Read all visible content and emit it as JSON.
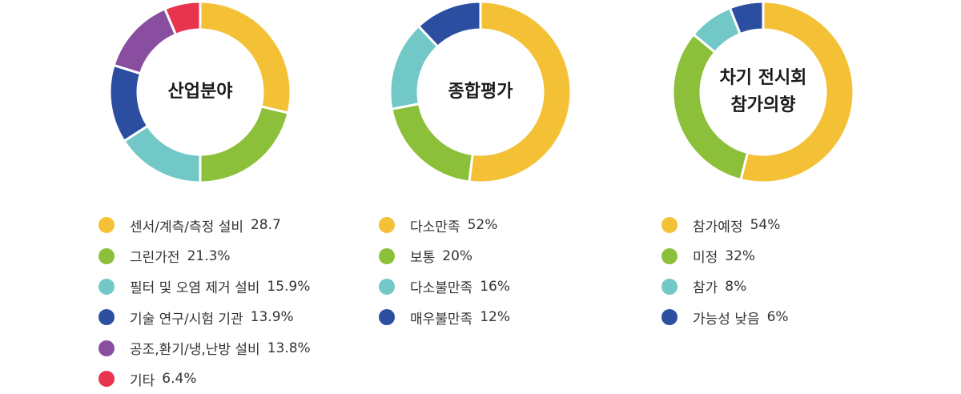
{
  "colors": {
    "yellow": "#f4c136",
    "green": "#8cc03a",
    "teal": "#72c8c7",
    "navy": "#2c4ea1",
    "purple": "#8a4ea1",
    "red": "#e8344e"
  },
  "chart_data": [
    {
      "type": "pie",
      "title": "산업분야",
      "series": [
        {
          "name": "센서/계측/측정 설비",
          "label": "28.7",
          "value": 28.7,
          "color": "#f4c136"
        },
        {
          "name": "그린가전",
          "label": "21.3%",
          "value": 21.3,
          "color": "#8cc03a"
        },
        {
          "name": "필터 및 오염 제거 설비",
          "label": "15.9%",
          "value": 15.9,
          "color": "#72c8c7"
        },
        {
          "name": "기술 연구/시험 기관",
          "label": "13.9%",
          "value": 13.9,
          "color": "#2c4ea1"
        },
        {
          "name": "공조,환기/냉,난방 설비",
          "label": "13.8%",
          "value": 13.8,
          "color": "#8a4ea1"
        },
        {
          "name": "기타",
          "label": "6.4%",
          "value": 6.4,
          "color": "#e8344e"
        }
      ]
    },
    {
      "type": "pie",
      "title": "종합평가",
      "series": [
        {
          "name": "다소만족",
          "label": "52%",
          "value": 52,
          "color": "#f4c136"
        },
        {
          "name": "보통",
          "label": "20%",
          "value": 20,
          "color": "#8cc03a"
        },
        {
          "name": "다소불만족",
          "label": "16%",
          "value": 16,
          "color": "#72c8c7"
        },
        {
          "name": "매우불만족",
          "label": "12%",
          "value": 12,
          "color": "#2c4ea1"
        }
      ]
    },
    {
      "type": "pie",
      "title": "차기 전시회\n참가의향",
      "series": [
        {
          "name": "참가예정",
          "label": "54%",
          "value": 54,
          "color": "#f4c136"
        },
        {
          "name": "미정",
          "label": "32%",
          "value": 32,
          "color": "#8cc03a"
        },
        {
          "name": "참가",
          "label": "8%",
          "value": 8,
          "color": "#72c8c7"
        },
        {
          "name": "가능성 낮음",
          "label": "6%",
          "value": 6,
          "color": "#2c4ea1"
        }
      ]
    }
  ]
}
